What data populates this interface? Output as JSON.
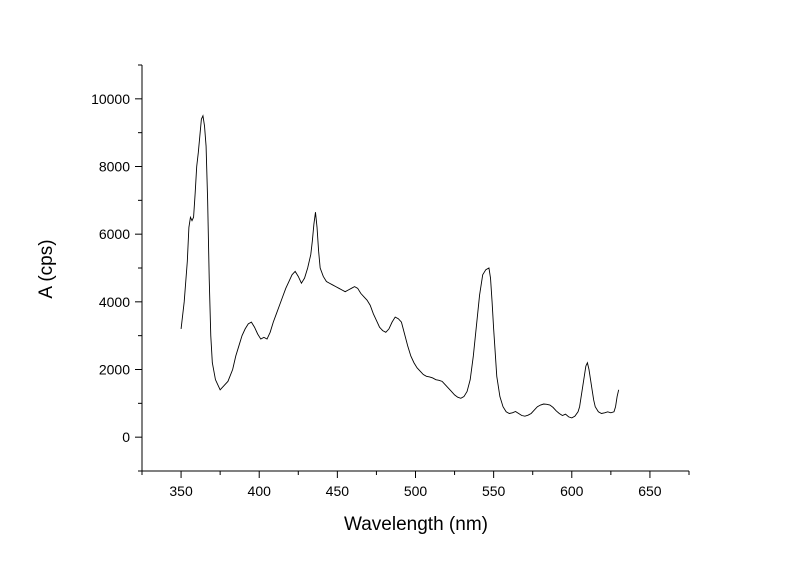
{
  "chart_data": {
    "type": "line",
    "title": "",
    "xlabel": "Wavelength (nm)",
    "ylabel": "A (cps)",
    "xlim": [
      325,
      675
    ],
    "ylim": [
      -1000,
      11000
    ],
    "x_ticks": [
      350,
      400,
      450,
      500,
      550,
      600,
      650
    ],
    "y_ticks": [
      0,
      2000,
      4000,
      6000,
      8000,
      10000
    ],
    "x_tick_labels": [
      "350",
      "400",
      "450",
      "500",
      "550",
      "600",
      "650"
    ],
    "y_tick_labels": [
      "0",
      "2000",
      "4000",
      "6000",
      "8000",
      "10000"
    ],
    "grid": false,
    "legend": "none",
    "line_color": "#000000",
    "series": [
      {
        "points": [
          [
            350,
            3200
          ],
          [
            352,
            4000
          ],
          [
            354,
            5200
          ],
          [
            355,
            6200
          ],
          [
            356,
            6500
          ],
          [
            357,
            6400
          ],
          [
            358,
            6500
          ],
          [
            359,
            7200
          ],
          [
            360,
            8000
          ],
          [
            361,
            8400
          ],
          [
            362,
            8900
          ],
          [
            363,
            9400
          ],
          [
            364,
            9500
          ],
          [
            365,
            9200
          ],
          [
            366,
            8600
          ],
          [
            367,
            7000
          ],
          [
            368,
            4700
          ],
          [
            369,
            3000
          ],
          [
            370,
            2200
          ],
          [
            372,
            1700
          ],
          [
            374,
            1500
          ],
          [
            375,
            1400
          ],
          [
            377,
            1500
          ],
          [
            380,
            1650
          ],
          [
            383,
            2000
          ],
          [
            385,
            2400
          ],
          [
            387,
            2700
          ],
          [
            389,
            3000
          ],
          [
            391,
            3200
          ],
          [
            393,
            3350
          ],
          [
            395,
            3400
          ],
          [
            397,
            3250
          ],
          [
            399,
            3050
          ],
          [
            401,
            2900
          ],
          [
            403,
            2950
          ],
          [
            405,
            2900
          ],
          [
            407,
            3100
          ],
          [
            409,
            3400
          ],
          [
            411,
            3650
          ],
          [
            413,
            3900
          ],
          [
            415,
            4150
          ],
          [
            417,
            4400
          ],
          [
            419,
            4600
          ],
          [
            421,
            4800
          ],
          [
            423,
            4900
          ],
          [
            425,
            4750
          ],
          [
            427,
            4550
          ],
          [
            429,
            4700
          ],
          [
            431,
            5000
          ],
          [
            433,
            5400
          ],
          [
            434,
            5800
          ],
          [
            435,
            6300
          ],
          [
            436,
            6650
          ],
          [
            437,
            6200
          ],
          [
            438,
            5500
          ],
          [
            439,
            5000
          ],
          [
            441,
            4750
          ],
          [
            443,
            4600
          ],
          [
            445,
            4550
          ],
          [
            447,
            4500
          ],
          [
            449,
            4450
          ],
          [
            451,
            4400
          ],
          [
            453,
            4350
          ],
          [
            455,
            4300
          ],
          [
            457,
            4350
          ],
          [
            459,
            4400
          ],
          [
            461,
            4450
          ],
          [
            463,
            4400
          ],
          [
            465,
            4250
          ],
          [
            467,
            4150
          ],
          [
            469,
            4050
          ],
          [
            471,
            3900
          ],
          [
            473,
            3650
          ],
          [
            475,
            3450
          ],
          [
            477,
            3250
          ],
          [
            479,
            3150
          ],
          [
            481,
            3100
          ],
          [
            483,
            3200
          ],
          [
            485,
            3400
          ],
          [
            487,
            3550
          ],
          [
            489,
            3500
          ],
          [
            491,
            3400
          ],
          [
            493,
            3050
          ],
          [
            495,
            2700
          ],
          [
            497,
            2400
          ],
          [
            499,
            2200
          ],
          [
            501,
            2050
          ],
          [
            503,
            1950
          ],
          [
            505,
            1850
          ],
          [
            507,
            1800
          ],
          [
            509,
            1780
          ],
          [
            511,
            1750
          ],
          [
            513,
            1700
          ],
          [
            515,
            1680
          ],
          [
            517,
            1650
          ],
          [
            519,
            1550
          ],
          [
            521,
            1450
          ],
          [
            523,
            1350
          ],
          [
            525,
            1250
          ],
          [
            527,
            1180
          ],
          [
            529,
            1150
          ],
          [
            531,
            1200
          ],
          [
            533,
            1350
          ],
          [
            535,
            1700
          ],
          [
            537,
            2400
          ],
          [
            539,
            3300
          ],
          [
            541,
            4200
          ],
          [
            543,
            4800
          ],
          [
            545,
            4950
          ],
          [
            547,
            5000
          ],
          [
            548,
            4700
          ],
          [
            549,
            4000
          ],
          [
            550,
            3200
          ],
          [
            551,
            2500
          ],
          [
            552,
            1800
          ],
          [
            554,
            1200
          ],
          [
            556,
            900
          ],
          [
            558,
            750
          ],
          [
            560,
            700
          ],
          [
            562,
            720
          ],
          [
            564,
            760
          ],
          [
            566,
            700
          ],
          [
            568,
            640
          ],
          [
            570,
            620
          ],
          [
            572,
            650
          ],
          [
            574,
            700
          ],
          [
            576,
            800
          ],
          [
            578,
            900
          ],
          [
            580,
            950
          ],
          [
            582,
            980
          ],
          [
            584,
            970
          ],
          [
            586,
            950
          ],
          [
            588,
            880
          ],
          [
            590,
            780
          ],
          [
            592,
            700
          ],
          [
            594,
            640
          ],
          [
            596,
            680
          ],
          [
            598,
            600
          ],
          [
            600,
            570
          ],
          [
            602,
            620
          ],
          [
            604,
            750
          ],
          [
            605,
            900
          ],
          [
            606,
            1200
          ],
          [
            607,
            1500
          ],
          [
            608,
            1800
          ],
          [
            609,
            2100
          ],
          [
            610,
            2200
          ],
          [
            611,
            2000
          ],
          [
            612,
            1700
          ],
          [
            613,
            1400
          ],
          [
            614,
            1100
          ],
          [
            615,
            900
          ],
          [
            617,
            750
          ],
          [
            619,
            700
          ],
          [
            621,
            720
          ],
          [
            623,
            750
          ],
          [
            625,
            720
          ],
          [
            627,
            750
          ],
          [
            628,
            900
          ],
          [
            629,
            1200
          ],
          [
            630,
            1400
          ]
        ]
      }
    ]
  }
}
